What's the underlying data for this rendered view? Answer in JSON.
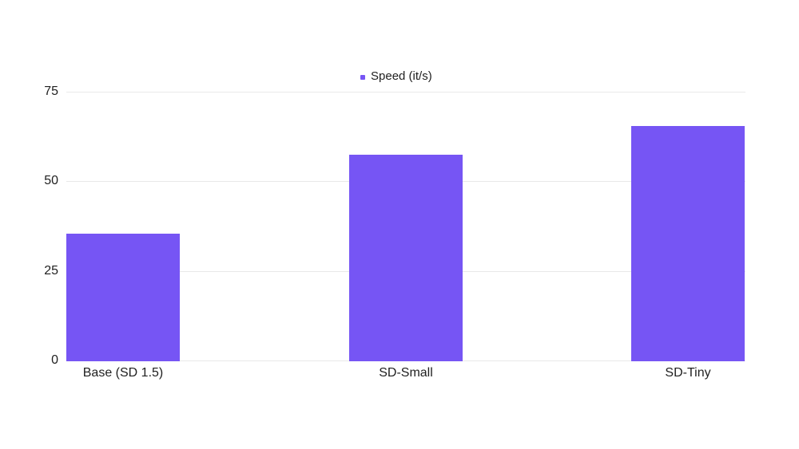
{
  "legend": {
    "label": "Speed (it/s)"
  },
  "chart_data": {
    "type": "bar",
    "title": "",
    "xlabel": "",
    "ylabel": "",
    "categories": [
      "Base (SD 1.5)",
      "SD-Small",
      "SD-Tiny"
    ],
    "series": [
      {
        "name": "Speed (it/s)",
        "values": [
          35.5,
          57.5,
          65.5
        ]
      }
    ],
    "yticks": [
      0,
      25,
      50,
      75
    ],
    "ylim": [
      0,
      78
    ],
    "grid": true,
    "legend_position": "top-center",
    "bar_color": "#7655F4",
    "gridline_color": "#e9e9e9",
    "text_color": "#1f1f1f",
    "background_color": "#ffffff"
  }
}
